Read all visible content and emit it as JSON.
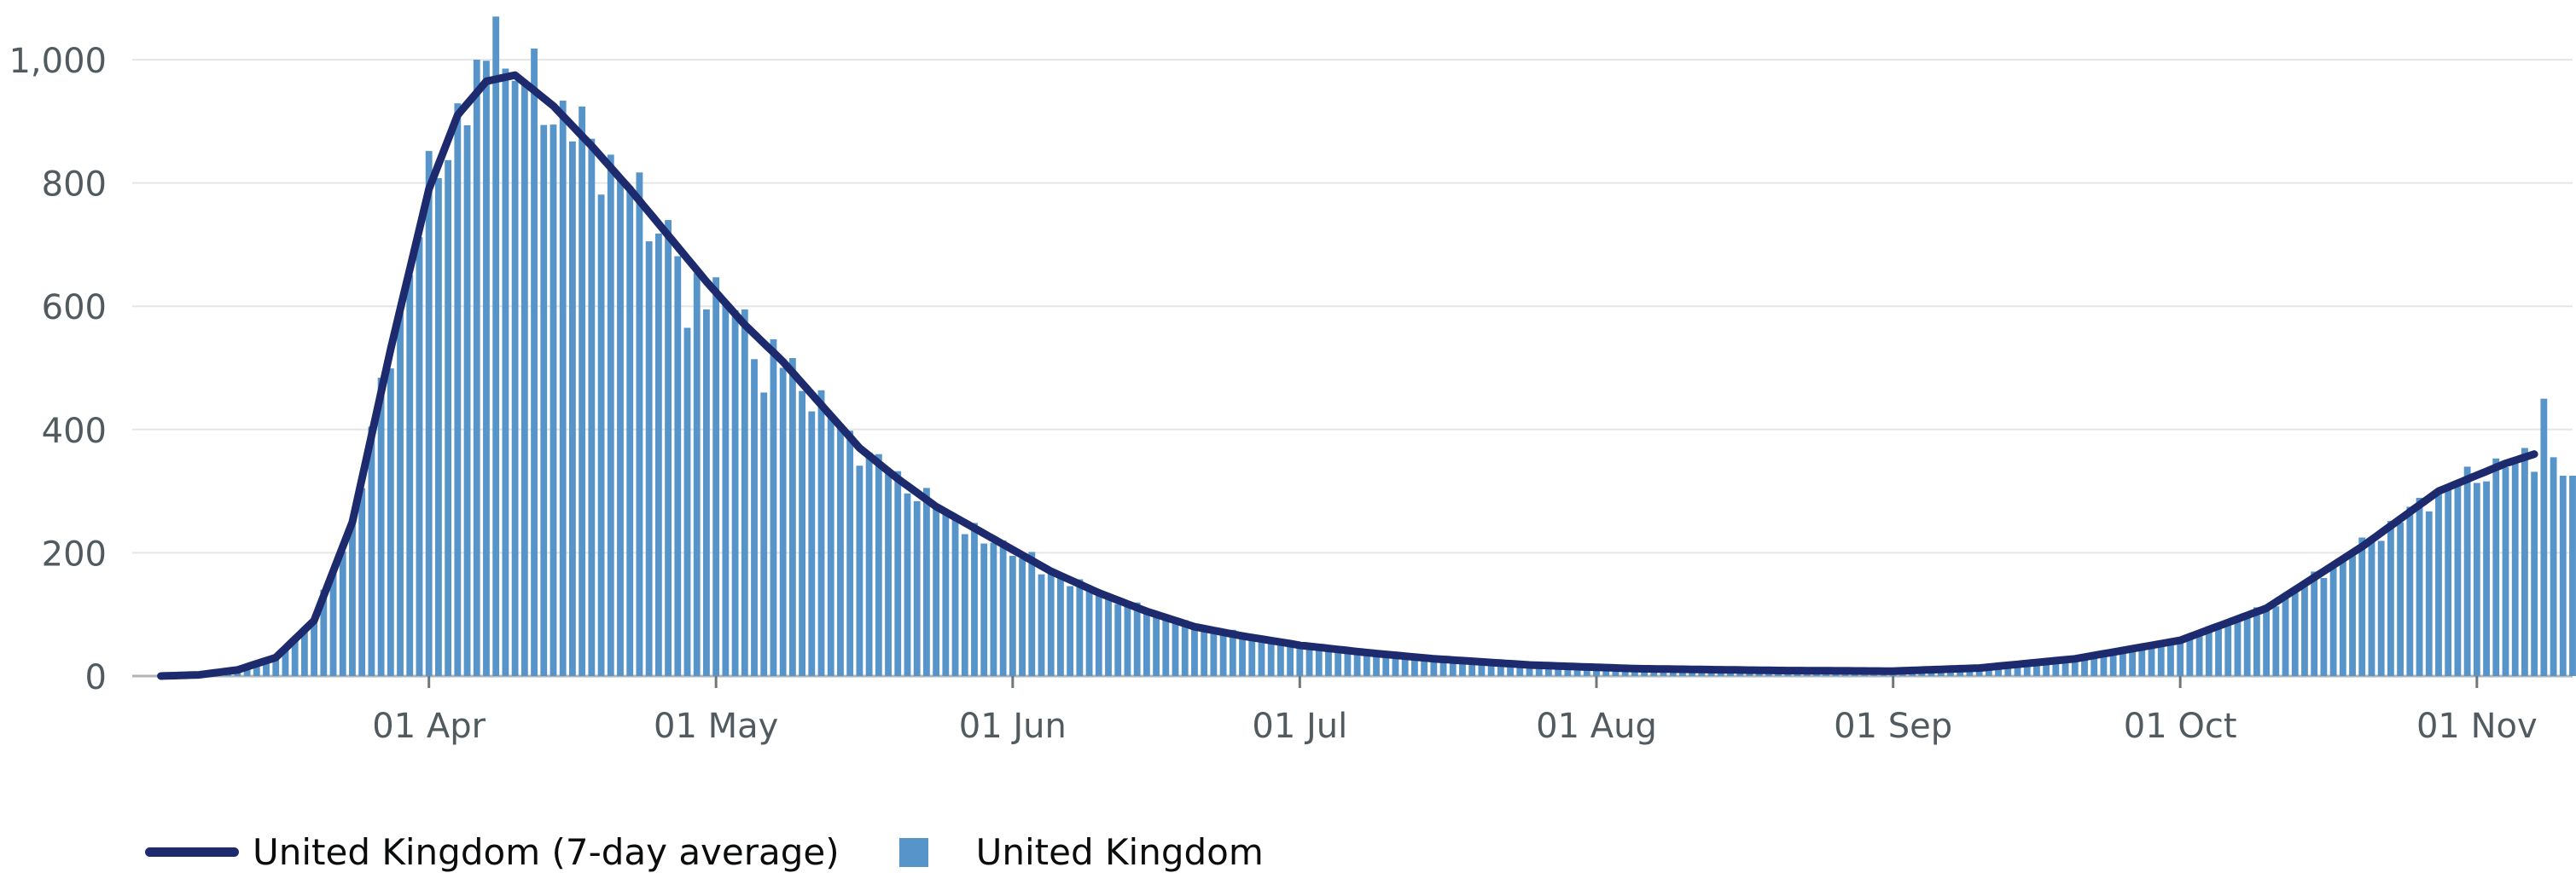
{
  "chart_data": {
    "type": "bar",
    "title": "",
    "xlabel": "",
    "ylabel": "",
    "ylim": [
      0,
      1000
    ],
    "grid": true,
    "legend_placement": "bottom-left",
    "x_start": "2020-03-01",
    "x_end": "2020-11-11",
    "y_ticks": [
      {
        "value": 0,
        "label": "0"
      },
      {
        "value": 200,
        "label": "200"
      },
      {
        "value": 400,
        "label": "400"
      },
      {
        "value": 600,
        "label": "600"
      },
      {
        "value": 800,
        "label": "800"
      },
      {
        "value": 1000,
        "label": "1,000"
      }
    ],
    "x_ticks": [
      {
        "date": "2020-04-01",
        "label": "01 Apr"
      },
      {
        "date": "2020-05-01",
        "label": "01 May"
      },
      {
        "date": "2020-06-01",
        "label": "01 Jun"
      },
      {
        "date": "2020-07-01",
        "label": "01 Jul"
      },
      {
        "date": "2020-08-01",
        "label": "01 Aug"
      },
      {
        "date": "2020-09-01",
        "label": "01 Sep"
      },
      {
        "date": "2020-10-01",
        "label": "01 Oct"
      },
      {
        "date": "2020-11-01",
        "label": "01 Nov"
      }
    ],
    "series": [
      {
        "name": "United Kingdom (7-day average)",
        "kind": "line",
        "color": "#1d2b6e",
        "points": [
          [
            "2020-03-04",
            0
          ],
          [
            "2020-03-08",
            2
          ],
          [
            "2020-03-12",
            10
          ],
          [
            "2020-03-16",
            30
          ],
          [
            "2020-03-20",
            90
          ],
          [
            "2020-03-24",
            250
          ],
          [
            "2020-03-28",
            530
          ],
          [
            "2020-04-01",
            790
          ],
          [
            "2020-04-04",
            910
          ],
          [
            "2020-04-07",
            965
          ],
          [
            "2020-04-10",
            975
          ],
          [
            "2020-04-14",
            925
          ],
          [
            "2020-04-18",
            860
          ],
          [
            "2020-04-22",
            790
          ],
          [
            "2020-04-26",
            715
          ],
          [
            "2020-04-30",
            640
          ],
          [
            "2020-05-04",
            570
          ],
          [
            "2020-05-08",
            510
          ],
          [
            "2020-05-12",
            440
          ],
          [
            "2020-05-16",
            370
          ],
          [
            "2020-05-20",
            320
          ],
          [
            "2020-05-24",
            275
          ],
          [
            "2020-05-28",
            240
          ],
          [
            "2020-06-01",
            205
          ],
          [
            "2020-06-05",
            170
          ],
          [
            "2020-06-10",
            135
          ],
          [
            "2020-06-15",
            105
          ],
          [
            "2020-06-20",
            80
          ],
          [
            "2020-06-25",
            65
          ],
          [
            "2020-07-01",
            50
          ],
          [
            "2020-07-08",
            38
          ],
          [
            "2020-07-15",
            28
          ],
          [
            "2020-07-25",
            18
          ],
          [
            "2020-08-05",
            12
          ],
          [
            "2020-08-20",
            9
          ],
          [
            "2020-09-01",
            8
          ],
          [
            "2020-09-10",
            13
          ],
          [
            "2020-09-20",
            28
          ],
          [
            "2020-10-01",
            58
          ],
          [
            "2020-10-10",
            110
          ],
          [
            "2020-10-20",
            210
          ],
          [
            "2020-10-28",
            300
          ],
          [
            "2020-11-04",
            345
          ],
          [
            "2020-11-07",
            360
          ]
        ]
      },
      {
        "name": "United Kingdom",
        "kind": "bar",
        "color": "#5694ca",
        "spikes": [
          [
            "2020-04-08",
            1070
          ],
          [
            "2020-04-06",
            1000
          ],
          [
            "2020-04-28",
            565
          ],
          [
            "2020-05-06",
            460
          ],
          [
            "2020-05-19",
            330
          ],
          [
            "2020-05-29",
            215
          ],
          [
            "2020-06-04",
            165
          ],
          [
            "2020-06-24",
            75
          ],
          [
            "2020-09-26",
            50
          ],
          [
            "2020-10-07",
            95
          ],
          [
            "2020-11-05",
            345
          ],
          [
            "2020-11-08",
            450
          ],
          [
            "2020-11-10",
            325
          ],
          [
            "2020-11-11",
            325
          ]
        ]
      }
    ]
  },
  "legend": {
    "line_label": "United Kingdom (7-day average)",
    "bar_label": "United Kingdom"
  }
}
